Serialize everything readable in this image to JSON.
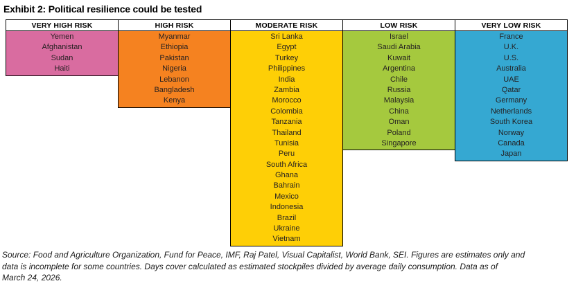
{
  "page_title": "Exhibit 2: Political resilience could be tested",
  "chart_data": {
    "type": "table",
    "title": "Exhibit 2: Political resilience could be tested",
    "columns": [
      "VERY HIGH RISK",
      "HIGH RISK",
      "MODERATE RISK",
      "LOW RISK",
      "VERY LOW RISK"
    ],
    "legend_position": "none",
    "groups": [
      {
        "label": "VERY HIGH RISK",
        "color": "#d96ca0",
        "countries": [
          "Yemen",
          "Afghanistan",
          "Sudan",
          "Haiti"
        ]
      },
      {
        "label": "HIGH RISK",
        "color": "#f58220",
        "countries": [
          "Myanmar",
          "Ethiopia",
          "Pakistan",
          "Nigeria",
          "Lebanon",
          "Bangladesh",
          "Kenya"
        ]
      },
      {
        "label": "MODERATE RISK",
        "color": "#fecf06",
        "countries": [
          "Sri Lanka",
          "Egypt",
          "Turkey",
          "Philippines",
          "India",
          "Zambia",
          "Morocco",
          "Colombia",
          "Tanzania",
          "Thailand",
          "Tunisia",
          "Peru",
          "South Africa",
          "Ghana",
          "Bahrain",
          "Mexico",
          "Indonesia",
          "Brazil",
          "Ukraine",
          "Vietnam"
        ]
      },
      {
        "label": "LOW RISK",
        "color": "#a5c93e",
        "countries": [
          "Israel",
          "Saudi Arabia",
          "Kuwait",
          "Argentina",
          "Chile",
          "Russia",
          "Malaysia",
          "China",
          "Oman",
          "Poland",
          "Singapore"
        ]
      },
      {
        "label": "VERY LOW RISK",
        "color": "#35a8d2",
        "countries": [
          "France",
          "U.K.",
          "U.S.",
          "Australia",
          "UAE",
          "Qatar",
          "Germany",
          "Netherlands",
          "South Korea",
          "Norway",
          "Canada",
          "Japan"
        ]
      }
    ]
  },
  "source": {
    "lines": [
      "Source: Food and Agriculture Organization, Fund for Peace, IMF, Raj Patel, Visual Capitalist, World Bank, SEI. Figures are estimates only and",
      "data is incomplete for some countries. Days cover calculated as estimated stockpiles divided by average daily consumption. Data as of",
      "March 24, 2026."
    ]
  },
  "style": {
    "border_color": "#000000",
    "text_color": "#231f20",
    "background_color": "#ffffff"
  }
}
